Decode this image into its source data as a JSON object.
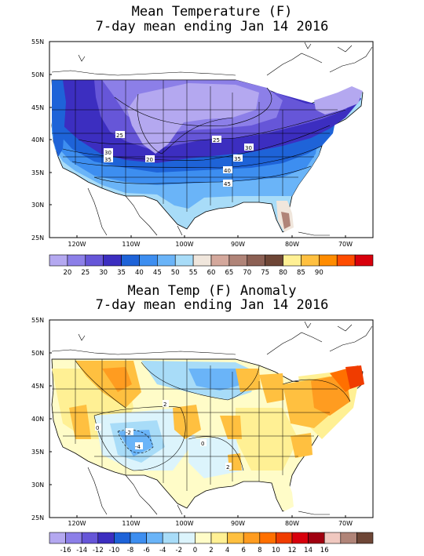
{
  "top_panel": {
    "title_line1": "Mean Temperature (F)",
    "title_line2": "7-day mean ending Jan 14 2016",
    "lat_labels": [
      "55N",
      "50N",
      "45N",
      "40N",
      "35N",
      "30N",
      "25N"
    ],
    "lon_labels": [
      "120W",
      "110W",
      "100W",
      "90W",
      "80W",
      "70W"
    ],
    "contour_labels": [
      "25",
      "30",
      "35",
      "20",
      "25",
      "30",
      "35",
      "40",
      "45"
    ],
    "colorbar": {
      "colors": [
        "#b4a8f0",
        "#8c7fe8",
        "#6656d8",
        "#3c2ec0",
        "#1e63d8",
        "#3d8ef0",
        "#6ab4f8",
        "#a8dcf8",
        "#f0e6dc",
        "#d4a89c",
        "#b08478",
        "#8c6054",
        "#6e4636"
      ],
      "labels": [
        "20",
        "25",
        "30",
        "35",
        "40",
        "45",
        "50",
        "55",
        "60",
        "65",
        "70",
        "75",
        "80",
        "85",
        "90"
      ],
      "warm_colors": [
        "#fff094",
        "#ffc040",
        "#ff8c00",
        "#ff4c00",
        "#d8000c"
      ]
    }
  },
  "bottom_panel": {
    "title_line1": "Mean Temp (F) Anomaly",
    "title_line2": "7-day mean ending Jan 14 2016",
    "lat_labels": [
      "55N",
      "50N",
      "45N",
      "40N",
      "35N",
      "30N",
      "25N"
    ],
    "lon_labels": [
      "120W",
      "110W",
      "100W",
      "90W",
      "80W",
      "70W"
    ],
    "contour_labels": [
      "2",
      "0",
      "-2",
      "-4",
      "0",
      "2"
    ],
    "colorbar": {
      "colors": [
        "#b4a8f0",
        "#8c7fe8",
        "#6656d8",
        "#3c2ec0",
        "#1e63d8",
        "#3d8ef0",
        "#6ab4f8",
        "#a8dcf8",
        "#dcf4fc",
        "#fffcc8",
        "#fff094",
        "#ffc040",
        "#ff9c20",
        "#ff7000",
        "#f03c00",
        "#d8000c",
        "#a00010",
        "#f0c8c0",
        "#b08478",
        "#6e4636"
      ],
      "labels": [
        "-16",
        "-14",
        "-12",
        "-10",
        "-8",
        "-6",
        "-4",
        "-2",
        "0",
        "2",
        "4",
        "6",
        "8",
        "10",
        "12",
        "14",
        "16"
      ]
    }
  }
}
